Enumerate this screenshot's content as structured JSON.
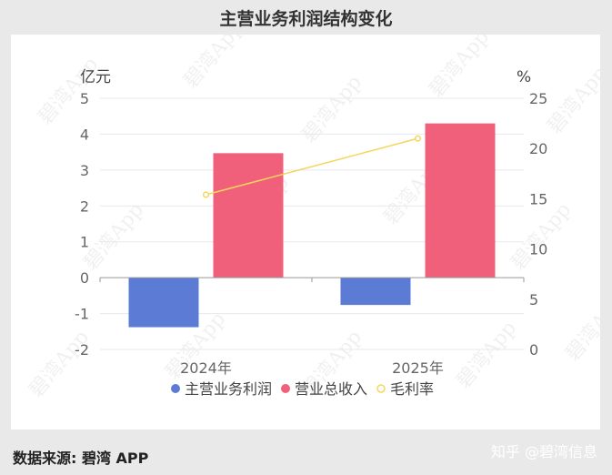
{
  "title": "主营业务利润结构变化",
  "source_label": "数据来源: 碧湾 APP",
  "credit": "知乎 @碧湾信息",
  "watermark": "碧湾App",
  "colors": {
    "profit": "#5b7bd5",
    "revenue": "#f0607b",
    "margin": "#f6d55c",
    "grid": "#e6e8f0",
    "axis": "#999999"
  },
  "chart_data": {
    "type": "bar",
    "categories": [
      "2024年",
      "2025年"
    ],
    "y_left": {
      "unit": "亿元",
      "min": -2,
      "max": 5,
      "ticks": [
        "-2",
        "-1",
        "0",
        "1",
        "2",
        "3",
        "4",
        "5"
      ]
    },
    "y_right": {
      "unit": "%",
      "min": 0,
      "max": 25,
      "ticks": [
        "0",
        "5",
        "10",
        "15",
        "20",
        "25"
      ]
    },
    "series": [
      {
        "name": "主营业务利润",
        "type": "bar",
        "axis": "left",
        "values": [
          -1.38,
          -0.76
        ]
      },
      {
        "name": "营业总收入",
        "type": "bar",
        "axis": "left",
        "values": [
          3.47,
          4.3
        ]
      },
      {
        "name": "毛利率",
        "type": "line",
        "axis": "right",
        "values": [
          15.4,
          21.0
        ]
      }
    ],
    "legend_position": "bottom",
    "grid": true
  }
}
